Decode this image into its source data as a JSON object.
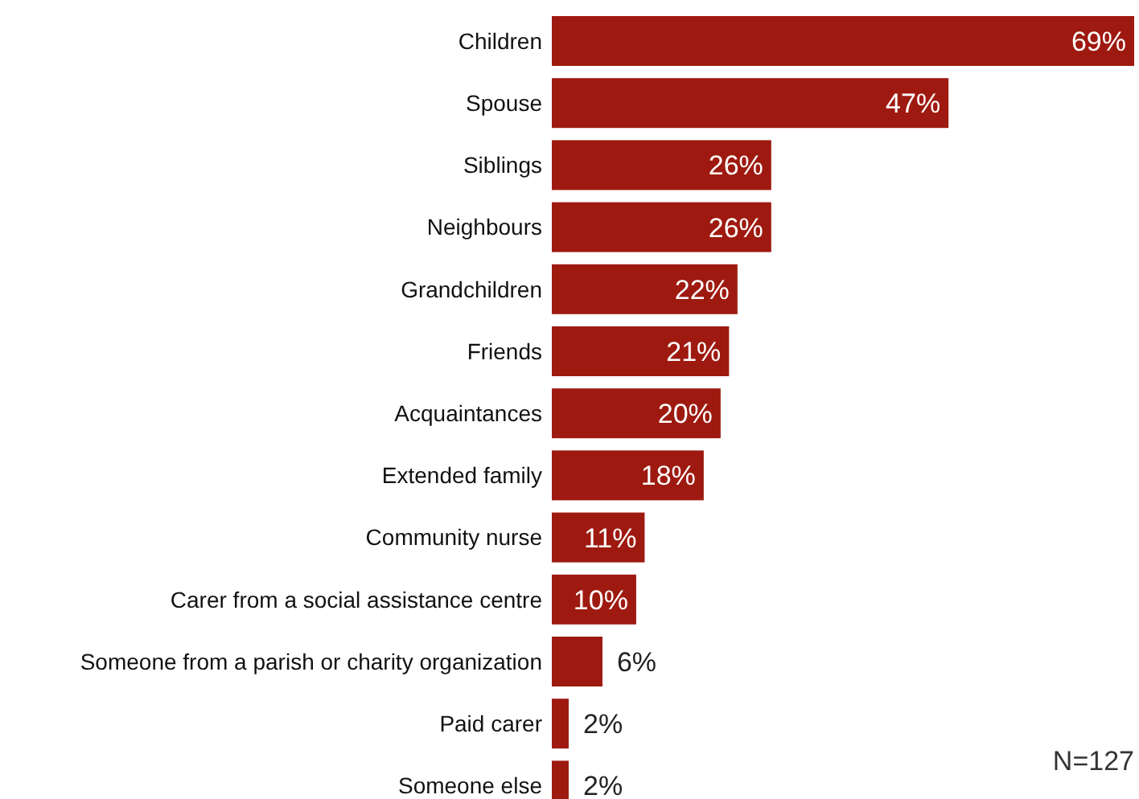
{
  "chart_data": {
    "type": "bar",
    "orientation": "horizontal",
    "relative": false,
    "categories": [
      "Children",
      "Spouse",
      "Siblings",
      "Neighbours",
      "Grandchildren",
      "Friends",
      "Acquaintances",
      "Extended family",
      "Community nurse",
      "Carer from a social assistance centre",
      "Someone from a parish or charity organization",
      "Paid carer",
      "Someone else"
    ],
    "values": [
      69,
      47,
      26,
      26,
      22,
      21,
      20,
      18,
      11,
      10,
      6,
      2,
      2
    ],
    "value_labels": [
      "69%",
      "47%",
      "26%",
      "26%",
      "22%",
      "21%",
      "20%",
      "18%",
      "11%",
      "10%",
      "6%",
      "2%",
      "2%"
    ],
    "color": "#9e1a10",
    "annotations": [
      "N=127"
    ]
  }
}
